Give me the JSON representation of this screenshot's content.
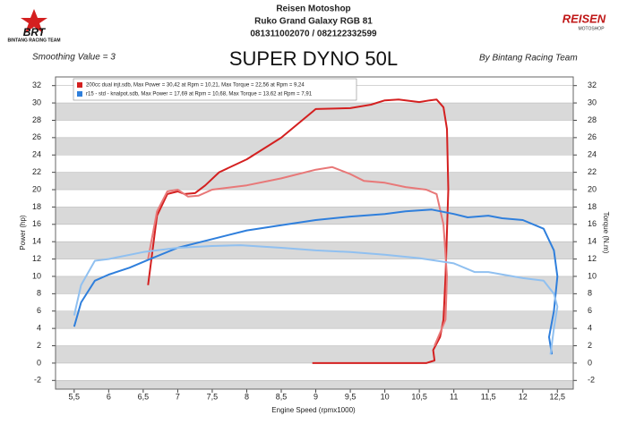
{
  "chart_data": {
    "type": "line",
    "header": [
      "Reisen Motoshop",
      "Ruko Grand Galaxy RGB 81",
      "081311002070 / 082122332599"
    ],
    "title": "SUPER DYNO 50L",
    "smoothing": "Smoothing Value = 3",
    "credit": "By Bintang Racing Team",
    "logo_left": [
      "BRT",
      "BINTANG RACING TEAM"
    ],
    "logo_right": [
      "REISEN",
      "MOTOSHOP"
    ],
    "xlabel": "Engine Speed (rpmx1000)",
    "ylabel": "Power (hp)",
    "y2label": "Torque (N.m)",
    "xlim": [
      5.23,
      12.73
    ],
    "ylim": [
      -3,
      33
    ],
    "y2lim": [
      -3,
      33
    ],
    "xticks": [
      {
        "value": 5.5,
        "label": "5,5"
      },
      6,
      {
        "value": 6.5,
        "label": "6,5"
      },
      7,
      {
        "value": 7.5,
        "label": "7,5"
      },
      8,
      {
        "value": 8.5,
        "label": "8,5"
      },
      9,
      {
        "value": 9.5,
        "label": "9,5"
      },
      10,
      {
        "value": 10.5,
        "label": "10,5"
      },
      11,
      {
        "value": 11.5,
        "label": "11,5"
      },
      12,
      {
        "value": 12.5,
        "label": "12,5"
      }
    ],
    "yticks": [
      -2,
      0,
      2,
      4,
      6,
      8,
      10,
      12,
      14,
      16,
      18,
      20,
      22,
      24,
      26,
      28,
      30,
      32
    ],
    "y2ticks": [
      -2,
      0,
      2,
      4,
      6,
      8,
      10,
      12,
      14,
      16,
      18,
      20,
      22,
      24,
      26,
      28,
      30,
      32
    ],
    "grid": true,
    "legend": "top-left",
    "series": [
      {
        "name": "200cc dual injt.sdb, Max Power = 30,42 at Rpm = 10,21, Max Torque = 22,56 at Rpm = 9,24",
        "color": "#d42020",
        "x": [
          6.57,
          6.7,
          6.85,
          7,
          7.1,
          7.25,
          7.4,
          7.6,
          8,
          8.5,
          9,
          9.5,
          9.8,
          10,
          10.2,
          10.5,
          10.65,
          10.75,
          10.85,
          10.9,
          10.92,
          10.88,
          10.85,
          10.8,
          10.7,
          10.72,
          10.6,
          9.5,
          8.95
        ],
        "values": [
          9,
          17,
          19.5,
          19.8,
          19.5,
          19.6,
          20.5,
          22,
          23.5,
          26,
          29.3,
          29.4,
          29.8,
          30.3,
          30.4,
          30.1,
          30.3,
          30.4,
          29.5,
          27,
          20,
          10,
          5,
          3,
          1.5,
          0.3,
          0,
          0,
          0
        ]
      },
      {
        "color": "#e87878",
        "axis": "y2",
        "x": [
          6.57,
          6.7,
          6.85,
          7,
          7.15,
          7.3,
          7.5,
          8,
          8.5,
          9,
          9.24,
          9.5,
          9.7,
          10,
          10.3,
          10.6,
          10.75,
          10.85,
          10.9,
          10.88,
          10.8,
          10.72
        ],
        "values": [
          12,
          17.5,
          19.8,
          20,
          19.2,
          19.3,
          20,
          20.5,
          21.3,
          22.3,
          22.6,
          21.8,
          21,
          20.8,
          20.3,
          20,
          19.5,
          16,
          10,
          5,
          3.5,
          2
        ]
      },
      {
        "name": "r15 - std - knalpot.sdb, Max Power = 17,69 at Rpm = 10,68, Max Torque = 13,62 at Rpm = 7,91",
        "color": "#2f7fdc",
        "x": [
          5.5,
          5.6,
          5.8,
          6,
          6.3,
          6.6,
          7,
          7.5,
          8,
          8.5,
          9,
          9.5,
          10,
          10.3,
          10.68,
          11,
          11.2,
          11.5,
          11.7,
          12,
          12.3,
          12.45,
          12.5,
          12.45,
          12.38,
          12.42
        ],
        "values": [
          4.2,
          7,
          9.5,
          10.2,
          11,
          12,
          13.3,
          14.3,
          15.3,
          15.9,
          16.5,
          16.9,
          17.2,
          17.5,
          17.7,
          17.2,
          16.8,
          17,
          16.7,
          16.5,
          15.5,
          13,
          10,
          6,
          3,
          1
        ]
      },
      {
        "color": "#90c0f0",
        "axis": "y2",
        "x": [
          5.5,
          5.6,
          5.8,
          6,
          6.5,
          7,
          7.5,
          7.91,
          8.5,
          9,
          9.5,
          10,
          10.5,
          11,
          11.3,
          11.5,
          12,
          12.3,
          12.45,
          12.5,
          12.45,
          12.4
        ],
        "values": [
          5.5,
          9,
          11.8,
          12,
          12.8,
          13.3,
          13.5,
          13.6,
          13.3,
          13,
          12.8,
          12.5,
          12.1,
          11.5,
          10.5,
          10.5,
          9.8,
          9.5,
          8,
          6.5,
          4,
          1
        ]
      }
    ]
  }
}
